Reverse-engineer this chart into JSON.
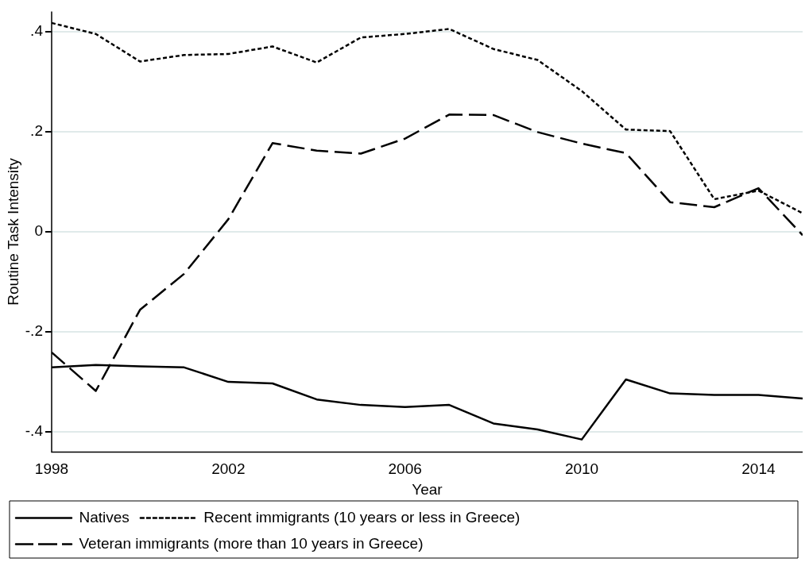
{
  "chart_data": {
    "type": "line",
    "xlabel": "Year",
    "ylabel": "Routine Task Intensity",
    "x": [
      1998,
      1999,
      2000,
      2001,
      2002,
      2003,
      2004,
      2005,
      2006,
      2007,
      2008,
      2009,
      2010,
      2011,
      2012,
      2013,
      2014,
      2015
    ],
    "series": [
      {
        "name": "Natives",
        "color": "#000000",
        "line_style": "solid",
        "values": [
          -0.271,
          -0.266,
          -0.269,
          -0.271,
          -0.3,
          -0.303,
          -0.335,
          -0.346,
          -0.35,
          -0.346,
          -0.383,
          -0.395,
          -0.415,
          -0.295,
          -0.323,
          -0.326,
          -0.326,
          -0.333
        ]
      },
      {
        "name": "Recent immigrants (10 years or less in Greece)",
        "color": "#000000",
        "line_style": "dotted",
        "values": [
          0.417,
          0.395,
          0.34,
          0.353,
          0.355,
          0.37,
          0.338,
          0.388,
          0.395,
          0.405,
          0.365,
          0.343,
          0.281,
          0.204,
          0.201,
          0.065,
          0.082,
          0.037
        ]
      },
      {
        "name": "Veteran immigrants (more than 10 years in Greece)",
        "color": "#000000",
        "line_style": "dashed",
        "values": [
          -0.241,
          -0.318,
          -0.156,
          -0.084,
          0.025,
          0.177,
          0.162,
          0.156,
          0.186,
          0.234,
          0.233,
          0.199,
          0.176,
          0.157,
          0.059,
          0.049,
          0.087,
          -0.007
        ]
      }
    ],
    "xlim": [
      1998,
      2015
    ],
    "xticks": [
      1998,
      2002,
      2006,
      2010,
      2014
    ],
    "ylim": [
      -0.44,
      0.44
    ],
    "yticks": [
      {
        "value": -0.4,
        "label": "-.4"
      },
      {
        "value": -0.2,
        "label": "-.2"
      },
      0,
      {
        "value": 0.2,
        "label": ".2"
      },
      {
        "value": 0.4,
        "label": ".4"
      }
    ],
    "grid": "y",
    "legend": "bottom",
    "marker": "none"
  }
}
